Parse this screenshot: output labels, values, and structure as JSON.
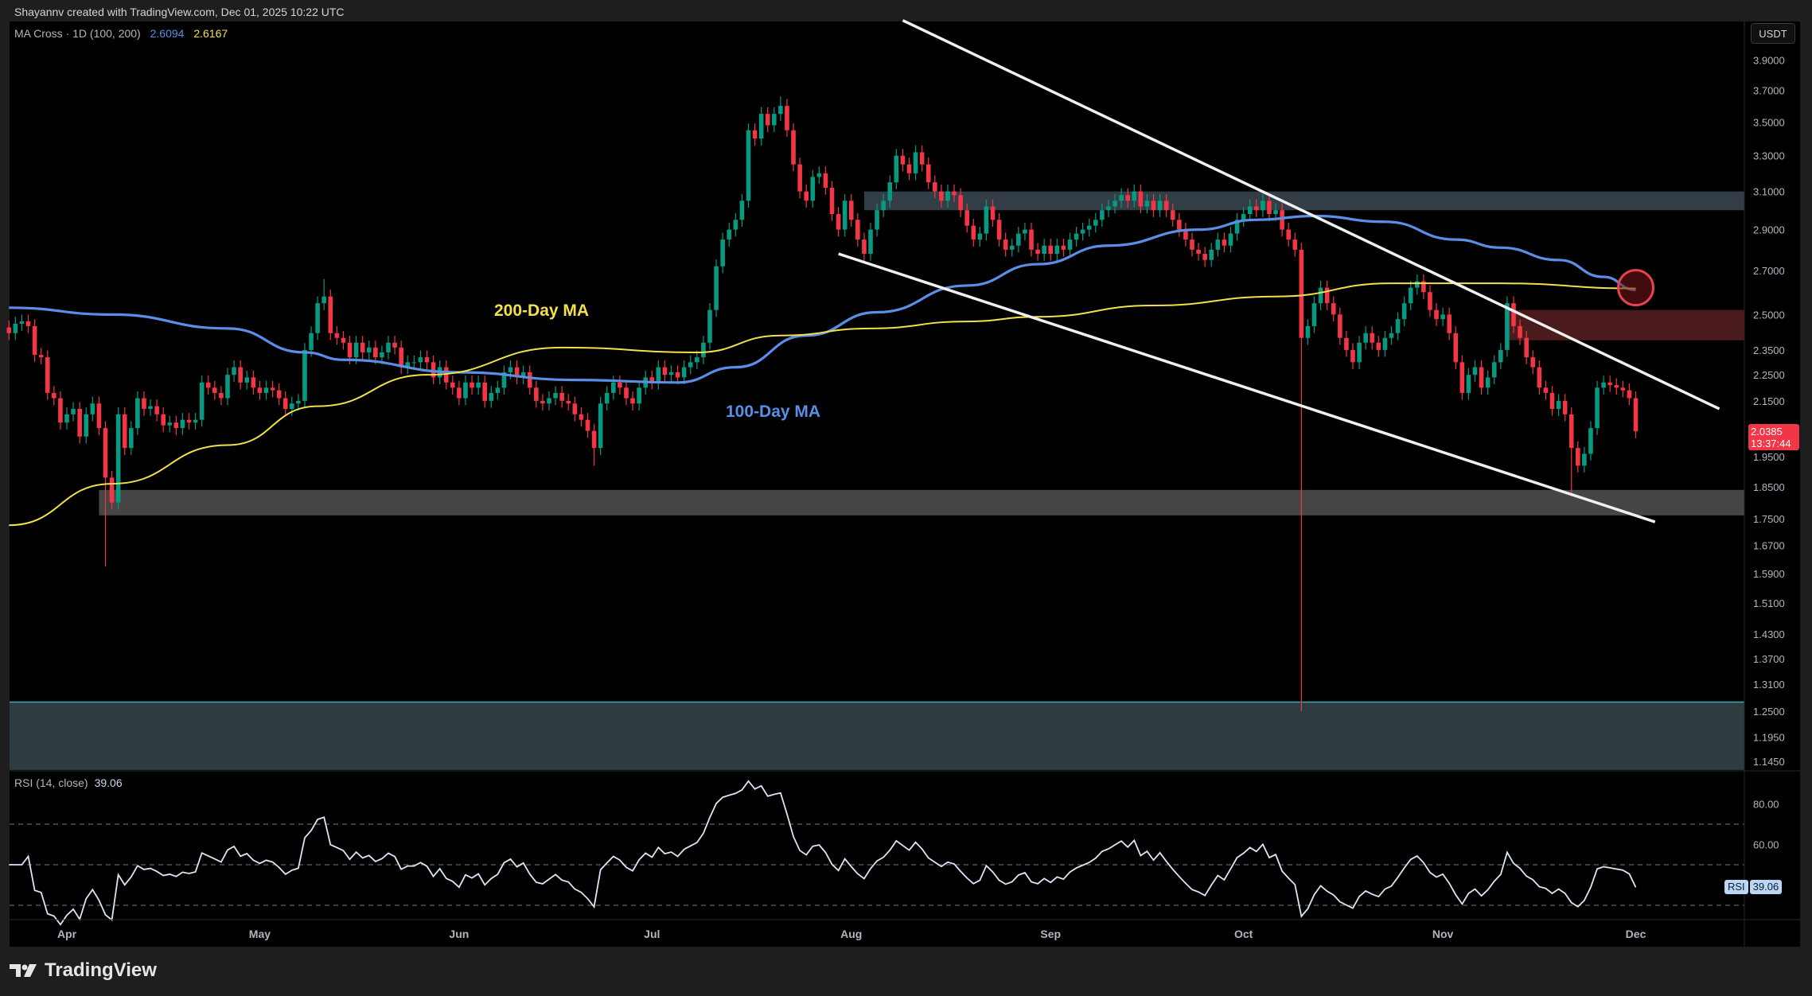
{
  "header": {
    "credit": "Shayannv created with TradingView.com, Dec 01, 2025 10:22 UTC"
  },
  "legend": {
    "title": "MA Cross · 1D (100, 200)",
    "ma100_value": "2.6094",
    "ma200_value": "2.6167"
  },
  "rsi_legend": {
    "title": "RSI (14, close)",
    "value": "39.06"
  },
  "price_axis": {
    "currency": "USDT",
    "ticks": [
      "3.9000",
      "3.7000",
      "3.5000",
      "3.3000",
      "3.1000",
      "2.9000",
      "2.7000",
      "2.5000",
      "2.3500",
      "2.2500",
      "2.1500",
      "1.9500",
      "1.8500",
      "1.7500",
      "1.6700",
      "1.5900",
      "1.5100",
      "1.4300",
      "1.3700",
      "1.3100",
      "1.2500",
      "1.1950",
      "1.1450"
    ],
    "last_price": "2.0385",
    "countdown": "13:37:44"
  },
  "rsi_axis": {
    "ticks": [
      "80.00",
      "60.00"
    ],
    "badge_label": "RSI",
    "badge_value": "39.06",
    "levels": [
      70,
      50,
      30
    ]
  },
  "date_axis": {
    "labels": [
      {
        "label": "Apr",
        "date": "2025-04-01"
      },
      {
        "label": "May",
        "date": "2025-05-01"
      },
      {
        "label": "Jun",
        "date": "2025-06-01"
      },
      {
        "label": "Jul",
        "date": "2025-07-01"
      },
      {
        "label": "Aug",
        "date": "2025-08-01"
      },
      {
        "label": "Sep",
        "date": "2025-09-01"
      },
      {
        "label": "Oct",
        "date": "2025-10-01"
      },
      {
        "label": "Nov",
        "date": "2025-11-01"
      },
      {
        "label": "Dec",
        "date": "2025-12-01"
      }
    ]
  },
  "annotations": {
    "ma200_label": "200-Day MA",
    "ma100_label": "100-Day MA"
  },
  "footer": {
    "brand": "TradingView"
  },
  "colors": {
    "up": "#089981",
    "down": "#f23645",
    "ma100": "#5b8ee6",
    "ma200": "#f2e14c",
    "background": "#000000",
    "frame": "#1e1e1e"
  },
  "chart_data": {
    "type": "candlestick",
    "scale": "log",
    "ylim": [
      1.128,
      4.17
    ],
    "xlim": [
      "2025-03-22",
      "2025-12-19"
    ],
    "candles": [
      {
        "month": "2025-03",
        "first_day": 23,
        "close": [
          2.42,
          2.46,
          2.47,
          2.45,
          2.33,
          2.32,
          2.18,
          2.16,
          2.07
        ]
      },
      {
        "month": "2025-04",
        "first_day": 1,
        "close": [
          2.1,
          2.12,
          2.02,
          2.1,
          2.14,
          2.05,
          1.88,
          1.8,
          2.1,
          1.98,
          2.05,
          2.16,
          2.12,
          2.13,
          2.1,
          2.06,
          2.07,
          2.05,
          2.08,
          2.07,
          2.08,
          2.22,
          2.2,
          2.18,
          2.16,
          2.25,
          2.28,
          2.22,
          2.24,
          2.2
        ]
      },
      {
        "month": "2025-05",
        "first_day": 1,
        "close": [
          2.18,
          2.2,
          2.19,
          2.16,
          2.12,
          2.14,
          2.15,
          2.35,
          2.42,
          2.55,
          2.58,
          2.42,
          2.4,
          2.38,
          2.32,
          2.38,
          2.34,
          2.36,
          2.32,
          2.34,
          2.38,
          2.36,
          2.28,
          2.3,
          2.3,
          2.32,
          2.3,
          2.24,
          2.28,
          2.22,
          2.2
        ]
      },
      {
        "month": "2025-06",
        "first_day": 1,
        "close": [
          2.16,
          2.22,
          2.2,
          2.22,
          2.15,
          2.18,
          2.2,
          2.26,
          2.28,
          2.24,
          2.26,
          2.2,
          2.15,
          2.14,
          2.16,
          2.18,
          2.15,
          2.14,
          2.1,
          2.08,
          2.04,
          1.98,
          2.14,
          2.18,
          2.22,
          2.2,
          2.16,
          2.14,
          2.2,
          2.24
        ]
      },
      {
        "month": "2025-07",
        "first_day": 1,
        "close": [
          2.22,
          2.28,
          2.25,
          2.26,
          2.24,
          2.28,
          2.3,
          2.32,
          2.38,
          2.52,
          2.72,
          2.85,
          2.9,
          2.95,
          3.05,
          3.45,
          3.4,
          3.55,
          3.48,
          3.55,
          3.6,
          3.45,
          3.25,
          3.1,
          3.05,
          3.18,
          3.2,
          3.12,
          2.98,
          2.9,
          3.05
        ]
      },
      {
        "month": "2025-08",
        "first_day": 1,
        "close": [
          2.95,
          2.85,
          2.78,
          2.9,
          3.0,
          3.05,
          3.15,
          3.3,
          3.25,
          3.2,
          3.32,
          3.25,
          3.15,
          3.1,
          3.05,
          3.1,
          3.08,
          3.0,
          2.92,
          2.85,
          2.88,
          3.02,
          2.95,
          2.85,
          2.8,
          2.82,
          2.88,
          2.9,
          2.8,
          2.78,
          2.82
        ]
      },
      {
        "month": "2025-09",
        "first_day": 1,
        "close": [
          2.78,
          2.82,
          2.8,
          2.85,
          2.88,
          2.9,
          2.92,
          2.95,
          3.0,
          3.02,
          3.05,
          3.08,
          3.05,
          3.1,
          3.02,
          3.05,
          3.0,
          3.05,
          3.0,
          2.95,
          2.9,
          2.85,
          2.8,
          2.78,
          2.75,
          2.8,
          2.85,
          2.82,
          2.88,
          2.95
        ]
      },
      {
        "month": "2025-10",
        "first_day": 1,
        "close": [
          2.98,
          3.02,
          3.0,
          3.05,
          2.98,
          3.0,
          2.9,
          2.85,
          2.8,
          2.4,
          2.45,
          2.55,
          2.62,
          2.55,
          2.5,
          2.4,
          2.35,
          2.3,
          2.38,
          2.42,
          2.38,
          2.35,
          2.4,
          2.42,
          2.48,
          2.55,
          2.62,
          2.65,
          2.6,
          2.52,
          2.48
        ]
      },
      {
        "month": "2025-11",
        "first_day": 1,
        "close": [
          2.5,
          2.42,
          2.3,
          2.18,
          2.25,
          2.28,
          2.2,
          2.24,
          2.3,
          2.35,
          2.55,
          2.45,
          2.4,
          2.32,
          2.28,
          2.2,
          2.18,
          2.12,
          2.15,
          2.1,
          1.98,
          1.92,
          1.96,
          2.05,
          2.2,
          2.22,
          2.21,
          2.2,
          2.19,
          2.16
        ]
      },
      {
        "month": "2025-12",
        "first_day": 1,
        "close": [
          2.0385
        ]
      }
    ],
    "notable_wicks": [
      {
        "date": "2025-04-07",
        "low": 1.61
      },
      {
        "date": "2025-05-11",
        "high": 2.66
      },
      {
        "date": "2025-06-22",
        "low": 1.92
      },
      {
        "date": "2025-07-21",
        "high": 3.66
      },
      {
        "date": "2025-10-10",
        "low": 1.25
      },
      {
        "date": "2025-11-21",
        "low": 1.82
      }
    ],
    "series": [
      {
        "name": "100-Day MA",
        "color": "#5b8ee6",
        "points": [
          [
            "2025-03-23",
            2.53
          ],
          [
            "2025-04-08",
            2.5
          ],
          [
            "2025-04-26",
            2.44
          ],
          [
            "2025-05-08",
            2.34
          ],
          [
            "2025-05-14",
            2.31
          ],
          [
            "2025-06-01",
            2.26
          ],
          [
            "2025-06-19",
            2.23
          ],
          [
            "2025-07-05",
            2.22
          ],
          [
            "2025-07-14",
            2.28
          ],
          [
            "2025-07-25",
            2.41
          ],
          [
            "2025-08-05",
            2.51
          ],
          [
            "2025-08-19",
            2.63
          ],
          [
            "2025-08-30",
            2.73
          ],
          [
            "2025-09-10",
            2.82
          ],
          [
            "2025-09-24",
            2.9
          ],
          [
            "2025-10-03",
            2.95
          ],
          [
            "2025-10-12",
            2.97
          ],
          [
            "2025-10-23",
            2.94
          ],
          [
            "2025-11-03",
            2.85
          ],
          [
            "2025-11-10",
            2.81
          ],
          [
            "2025-11-19",
            2.75
          ],
          [
            "2025-11-26",
            2.67
          ],
          [
            "2025-12-01",
            2.6094
          ]
        ]
      },
      {
        "name": "200-Day MA",
        "color": "#f2e14c",
        "points": [
          [
            "2025-03-23",
            1.73
          ],
          [
            "2025-04-08",
            1.86
          ],
          [
            "2025-04-26",
            1.99
          ],
          [
            "2025-05-10",
            2.13
          ],
          [
            "2025-05-27",
            2.25
          ],
          [
            "2025-06-17",
            2.36
          ],
          [
            "2025-07-08",
            2.34
          ],
          [
            "2025-07-21",
            2.41
          ],
          [
            "2025-08-04",
            2.44
          ],
          [
            "2025-08-19",
            2.47
          ],
          [
            "2025-08-30",
            2.49
          ],
          [
            "2025-09-17",
            2.54
          ],
          [
            "2025-10-06",
            2.58
          ],
          [
            "2025-10-24",
            2.64
          ],
          [
            "2025-11-10",
            2.64
          ],
          [
            "2025-12-01",
            2.6167
          ]
        ]
      }
    ],
    "zones": [
      {
        "kind": "resistance",
        "from": "2025-08-03",
        "top": 3.1,
        "bottom": 3.0,
        "color": "#333d45"
      },
      {
        "kind": "supply",
        "from": "2025-11-11",
        "top": 2.52,
        "bottom": 2.39,
        "color": "#4a1a1c"
      },
      {
        "kind": "support",
        "from": "2025-04-06",
        "top": 1.84,
        "bottom": 1.76,
        "color": "#454545"
      },
      {
        "kind": "demand",
        "from": "2025-03-22",
        "top": 1.27,
        "bottom": 1.128,
        "color": "#2e3c3f"
      }
    ],
    "trendlines": [
      {
        "kind": "channel-upper",
        "from": [
          "2025-08-09",
          4.18
        ],
        "to": [
          "2025-12-14",
          2.12
        ]
      },
      {
        "kind": "channel-lower",
        "from": [
          "2025-07-30",
          2.78
        ],
        "to": [
          "2025-12-04",
          1.74
        ]
      }
    ],
    "highlight_circle": {
      "date": "2025-12-01",
      "price": 2.62,
      "color": "#e8424f"
    }
  }
}
